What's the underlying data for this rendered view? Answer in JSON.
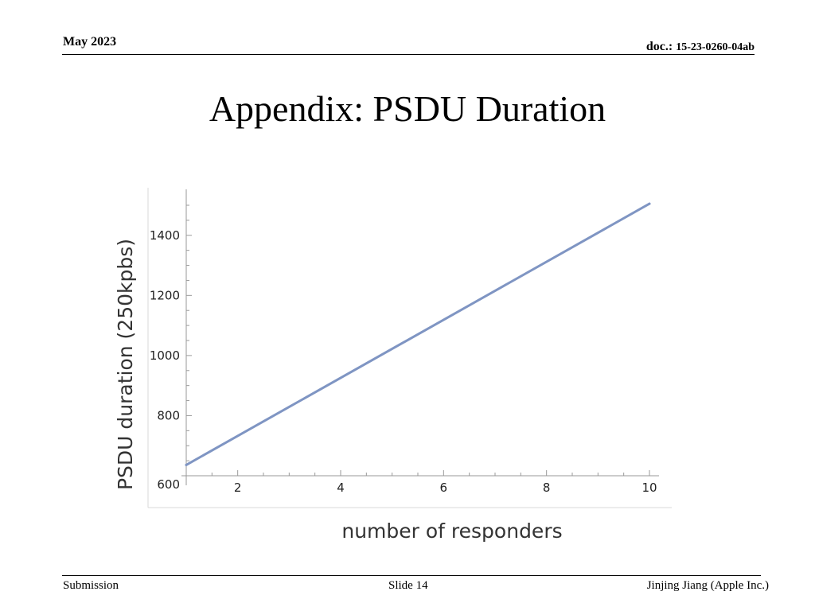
{
  "header": {
    "date": "May 2023",
    "doc_label": "doc.:",
    "doc_number": "15-23-0260-04ab"
  },
  "slide": {
    "title": "Appendix: PSDU Duration"
  },
  "footer": {
    "left": "Submission",
    "center": "Slide 14",
    "right": "Jinjing Jiang (Apple Inc.)"
  },
  "chart_data": {
    "type": "line",
    "title": "",
    "xlabel": "number of responders",
    "ylabel": "PSDU duration (250kpbs)",
    "xlim": [
      1,
      10
    ],
    "ylim": [
      600,
      1500
    ],
    "x_ticks": [
      2,
      4,
      6,
      8,
      10
    ],
    "y_ticks": [
      600,
      800,
      1000,
      1200,
      1400
    ],
    "grid": false,
    "line_color": "#7f95c3",
    "series": [
      {
        "x": [
          1,
          10
        ],
        "y": [
          636,
          1505
        ]
      }
    ]
  }
}
